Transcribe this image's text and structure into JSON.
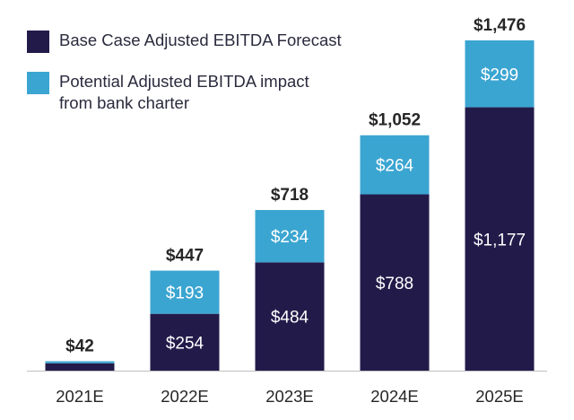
{
  "chart_data": {
    "type": "bar",
    "stacked": true,
    "categories": [
      "2021E",
      "2022E",
      "2023E",
      "2024E",
      "2025E"
    ],
    "series": [
      {
        "name": "Base Case Adjusted EBITDA Forecast",
        "color": "#221b4a",
        "values": [
          33,
          254,
          484,
          788,
          1177
        ],
        "labels": [
          "",
          "$254",
          "$484",
          "$788",
          "$1,177"
        ]
      },
      {
        "name": "Potential Adjusted EBITDA impact from bank charter",
        "color": "#3ba5d1",
        "values": [
          9,
          193,
          234,
          264,
          299
        ],
        "labels": [
          "",
          "$193",
          "$234",
          "$264",
          "$299"
        ]
      }
    ],
    "totals": [
      42,
      447,
      718,
      1052,
      1476
    ],
    "total_labels": [
      "$42",
      "$447",
      "$718",
      "$1,052",
      "$1,476"
    ],
    "ylim": [
      0,
      1476
    ],
    "legend_position": "top-left",
    "grid": false
  },
  "legend": {
    "base": "Base Case Adjusted EBITDA Forecast",
    "impact_line1": "Potential Adjusted EBITDA impact",
    "impact_line2": "from bank charter"
  }
}
